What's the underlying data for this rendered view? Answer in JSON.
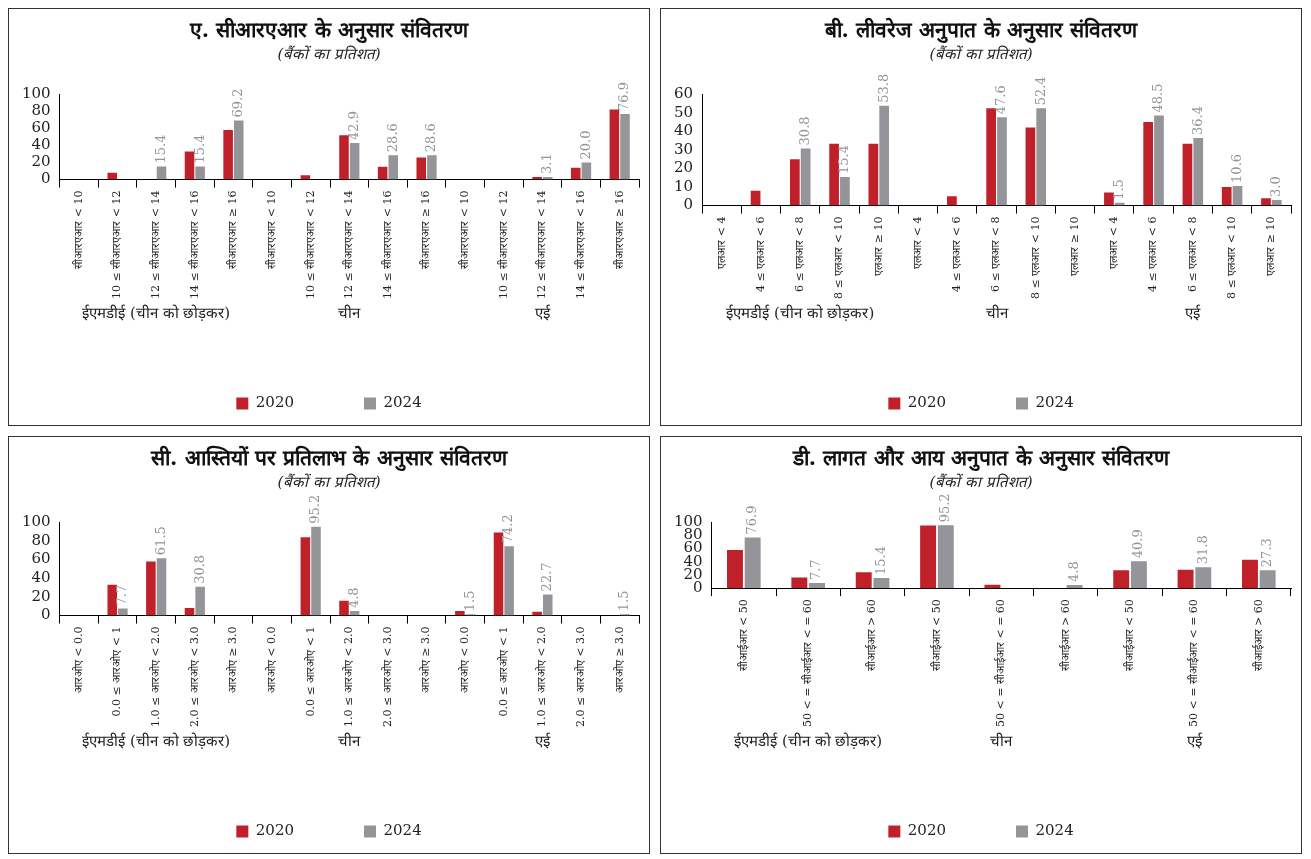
{
  "chart_data": [
    {
      "type": "bar",
      "title": "ए. सीआरएआर के अनुसार संवितरण",
      "subtitle": "(बैंकों का प्रतिशत)",
      "categories": [
        "सीआरएआर < 10",
        "10 ≤ सीआरएआर < 12",
        "12 ≤ सीआरएआर < 14",
        "14 ≤ सीआरएआर < 16",
        "सीआरएआर ≥ 16",
        "सीआरएआर < 10",
        "10 ≤ सीआरएआर < 12",
        "12 ≤ सीआरएआर < 14",
        "14 ≤ सीआरएआर < 16",
        "सीआरएआर ≥ 16",
        "सीआरएआर < 10",
        "10 ≤ सीआरएआर < 12",
        "12 ≤ सीआरएआर < 14",
        "14 ≤ सीआरएआर < 16",
        "सीआरएआर ≥ 16"
      ],
      "series": [
        {
          "name": "2020",
          "color": "#c0202a",
          "values": [
            0,
            8,
            0,
            33,
            58,
            0,
            5,
            52,
            15,
            26,
            0,
            0,
            3,
            14,
            82
          ]
        },
        {
          "name": "2024",
          "color": "#939598",
          "values": [
            0,
            0,
            15.4,
            15.4,
            69.2,
            0,
            0,
            42.9,
            28.6,
            28.6,
            0,
            0,
            3.1,
            20.0,
            76.9
          ],
          "value_labels": [
            null,
            null,
            "15.4",
            "15.4",
            "69.2",
            null,
            null,
            "42.9",
            "28.6",
            "28.6",
            null,
            null,
            "3.1",
            "20.0",
            "76.9"
          ]
        }
      ],
      "ylim": [
        0,
        100
      ],
      "yticks": [
        0,
        20,
        40,
        60,
        80,
        100
      ],
      "legend": "bottom",
      "annotations": [
        "ईएमडीई (चीन को छोड़कर)",
        "चीन",
        "एई"
      ]
    },
    {
      "type": "bar",
      "title": "बी. लीवरेज अनुपात के अनुसार संवितरण",
      "subtitle": "(बैंकों का प्रतिशत)",
      "categories": [
        "एलआर < 4",
        "4 ≤ एलआर < 6",
        "6 ≤ एलआर < 8",
        "8 ≤ एलआर < 10",
        "एलआर ≥ 10",
        "एलआर < 4",
        "4 ≤ एलआर < 6",
        "6 ≤ एलआर < 8",
        "8 ≤ एलआर < 10",
        "एलआर ≥ 10",
        "एलआर < 4",
        "4 ≤ एलआर < 6",
        "6 ≤ एलआर < 8",
        "8 ≤ एलआर < 10",
        "एलआर ≥ 10"
      ],
      "series": [
        {
          "name": "2020",
          "color": "#c0202a",
          "values": [
            0,
            8,
            25,
            33.3,
            33.3,
            0,
            5,
            52.4,
            42,
            0,
            7,
            45,
            33.3,
            10,
            4
          ]
        },
        {
          "name": "2024",
          "color": "#939598",
          "values": [
            0,
            0,
            30.8,
            15.4,
            53.8,
            0,
            0,
            47.6,
            52.4,
            0,
            1.5,
            48.5,
            36.4,
            10.6,
            3.0
          ],
          "value_labels": [
            null,
            null,
            "30.8",
            "15.4",
            "53.8",
            null,
            null,
            "47.6",
            "52.4",
            null,
            "1.5",
            "48.5",
            "36.4",
            "10.6",
            "3.0"
          ]
        }
      ],
      "ylim": [
        0,
        60
      ],
      "yticks": [
        0,
        10,
        20,
        30,
        40,
        50,
        60
      ],
      "legend": "bottom",
      "annotations": [
        "ईएमडीई (चीन को छोड़कर)",
        "चीन",
        "एई"
      ]
    },
    {
      "type": "bar",
      "title": "सी. आस्तियों पर प्रतिलाभ के अनुसार संवितरण",
      "subtitle": "(बैंकों का प्रतिशत)",
      "categories": [
        "आरओए < 0.0",
        "0.0 ≤ आरओए < 1",
        "1.0 ≤ आरओए < 2.0",
        "2.0 ≤ आरओए < 3.0",
        "आरओए ≥ 3.0",
        "आरओए < 0.0",
        "0.0 ≤ आरओए < 1",
        "1.0 ≤ आरओए < 2.0",
        "2.0 ≤ आरओए < 3.0",
        "आरओए ≥ 3.0",
        "आरओए < 0.0",
        "0.0 ≤ आरओए < 1",
        "1.0 ≤ आरओए < 2.0",
        "2.0 ≤ आरओए < 3.0",
        "आरओए ≥ 3.0"
      ],
      "series": [
        {
          "name": "2020",
          "color": "#c0202a",
          "values": [
            0,
            33,
            58,
            8,
            0,
            0,
            84,
            16,
            0,
            0,
            5,
            89,
            4,
            0,
            0
          ]
        },
        {
          "name": "2024",
          "color": "#939598",
          "values": [
            0,
            7.7,
            61.5,
            30.8,
            0,
            0,
            95.2,
            4.8,
            0,
            0,
            1.5,
            74.2,
            22.7,
            0,
            1.5
          ],
          "value_labels": [
            null,
            "7.7",
            "61.5",
            "30.8",
            null,
            null,
            "95.2",
            "4.8",
            null,
            null,
            "1.5",
            "74.2",
            "22.7",
            null,
            "1.5"
          ]
        }
      ],
      "ylim": [
        0,
        100
      ],
      "yticks": [
        0,
        20,
        40,
        60,
        80,
        100
      ],
      "legend": "bottom",
      "annotations": [
        "ईएमडीई (चीन को छोड़कर)",
        "चीन",
        "एई"
      ]
    },
    {
      "type": "bar",
      "title": "डी. लागत और आय अनुपात के अनुसार संवितरण",
      "subtitle": "(बैंकों का प्रतिशत)",
      "categories": [
        "सीआईआर < 50",
        "50 < = सीआईआर < = 60",
        "सीआईआर > 60",
        "सीआईआर < 50",
        "50 < = सीआईआर < = 60",
        "सीआईआर > 60",
        "सीआईआर < 50",
        "50 < = सीआईआर < = 60",
        "सीआईआर > 60"
      ],
      "series": [
        {
          "name": "2020",
          "color": "#c0202a",
          "values": [
            58,
            16,
            24,
            95,
            5,
            0,
            27,
            28,
            43
          ]
        },
        {
          "name": "2024",
          "color": "#939598",
          "values": [
            76.9,
            7.7,
            15.4,
            95.2,
            0,
            4.8,
            40.9,
            31.8,
            27.3
          ],
          "value_labels": [
            "76.9",
            "7.7",
            "15.4",
            "95.2",
            null,
            "4.8",
            "40.9",
            "31.8",
            "27.3"
          ]
        }
      ],
      "ylim": [
        0,
        100
      ],
      "yticks": [
        0,
        20,
        40,
        60,
        80,
        100
      ],
      "legend": "bottom",
      "annotations": [
        "ईएमडीई (चीन को छोड़कर)",
        "चीन",
        "एई"
      ]
    }
  ]
}
